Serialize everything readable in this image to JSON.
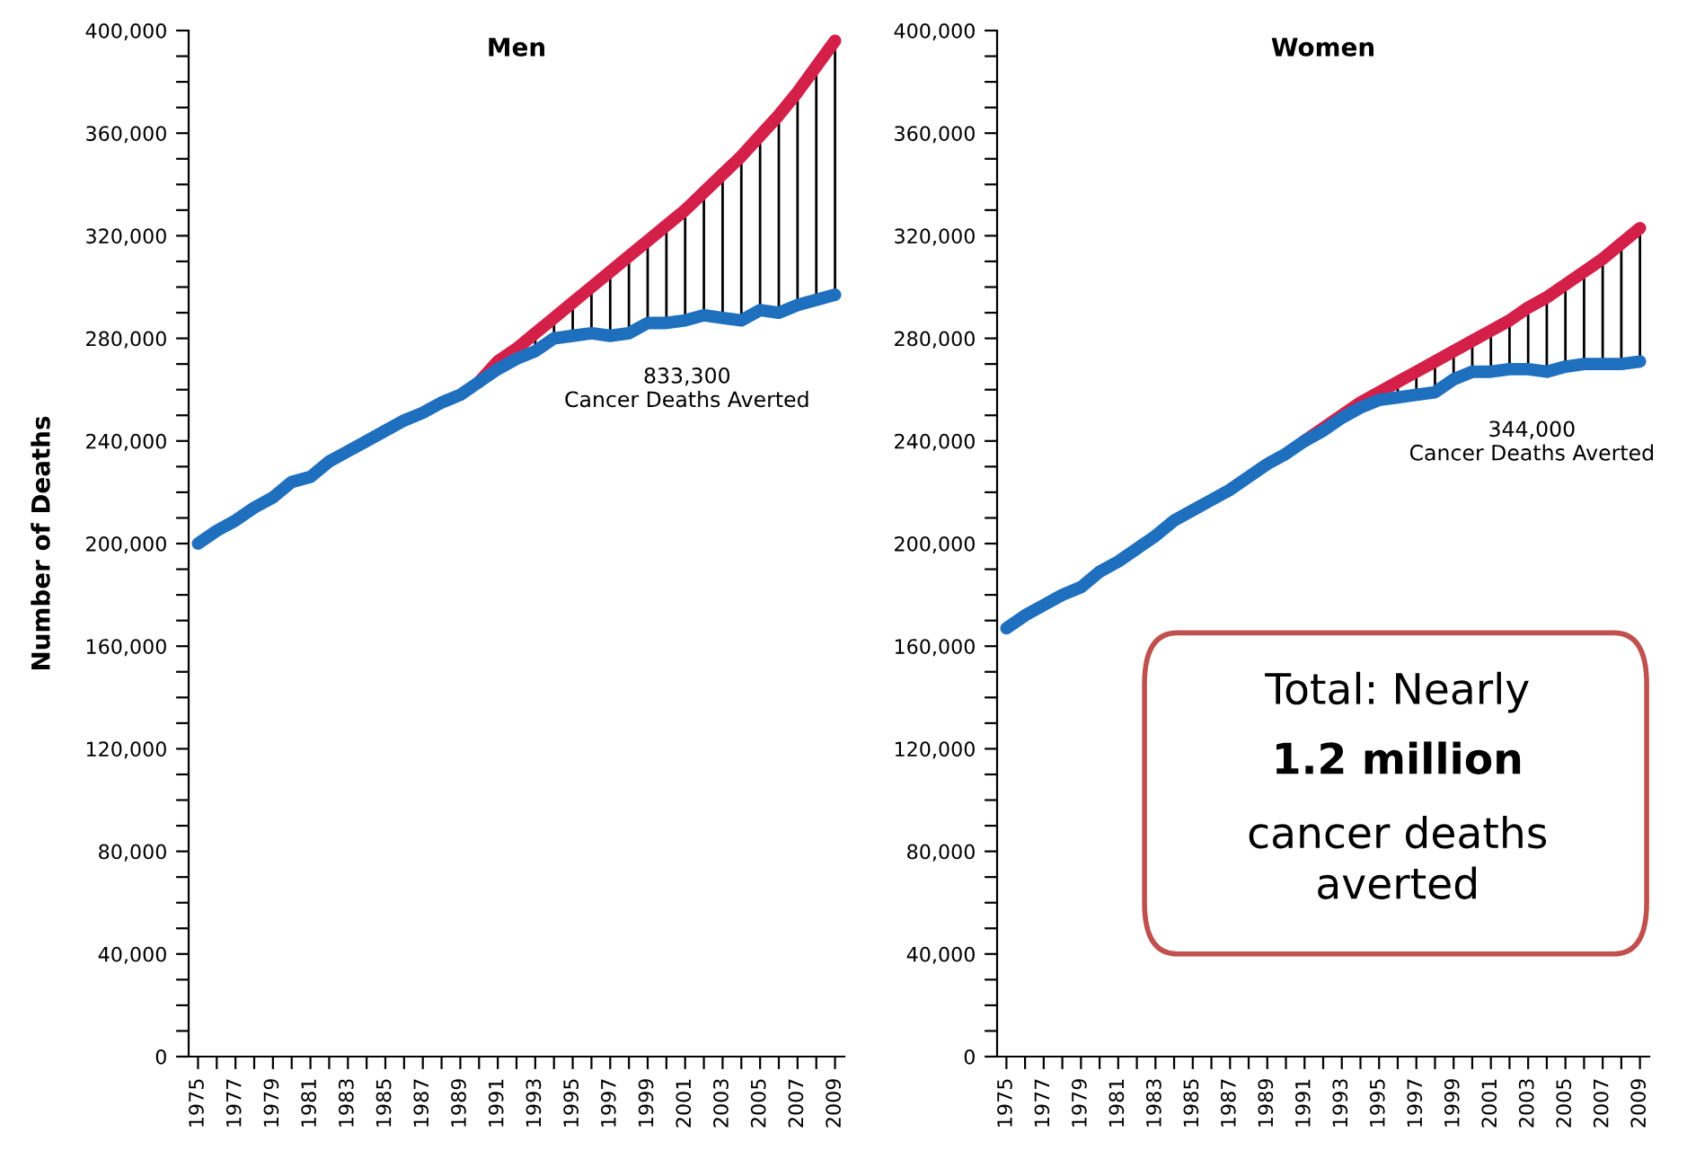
{
  "chart_data": [
    {
      "type": "line",
      "title": "Men",
      "ylabel": "Number of Deaths",
      "x": [
        1975,
        1976,
        1977,
        1978,
        1979,
        1980,
        1981,
        1982,
        1983,
        1984,
        1985,
        1986,
        1987,
        1988,
        1989,
        1990,
        1991,
        1992,
        1993,
        1994,
        1995,
        1996,
        1997,
        1998,
        1999,
        2000,
        2001,
        2002,
        2003,
        2004,
        2005,
        2006,
        2007,
        2008,
        2009
      ],
      "series": [
        {
          "color": "#d41f48",
          "values": [
            null,
            null,
            null,
            null,
            null,
            null,
            null,
            null,
            null,
            null,
            null,
            null,
            null,
            null,
            null,
            263000,
            271000,
            276000,
            282000,
            288000,
            294000,
            300000,
            306000,
            312000,
            318000,
            324000,
            330000,
            337000,
            344000,
            351000,
            359000,
            367000,
            376000,
            386000,
            396000
          ]
        },
        {
          "color": "#1f6fbf",
          "values": [
            200000,
            205000,
            209000,
            214000,
            218000,
            224000,
            226000,
            232000,
            236000,
            240000,
            244000,
            248000,
            251000,
            255000,
            258000,
            263000,
            268000,
            272000,
            275000,
            280000,
            281000,
            282000,
            281000,
            282000,
            286000,
            286000,
            287000,
            289000,
            288000,
            287000,
            291000,
            290000,
            293000,
            295000,
            297000
          ]
        }
      ],
      "annotations": [
        "833,300\nCancer Deaths Averted"
      ],
      "xlim": [
        1974.5,
        2009.5
      ],
      "ylim": [
        0,
        400000
      ],
      "xticks": [
        {
          "value": 1975,
          "label": "1975"
        },
        {
          "value": 1976,
          "label": null
        },
        {
          "value": 1977,
          "label": "1977"
        },
        {
          "value": 1978,
          "label": null
        },
        {
          "value": 1979,
          "label": "1979"
        },
        {
          "value": 1980,
          "label": null
        },
        {
          "value": 1981,
          "label": "1981"
        },
        {
          "value": 1982,
          "label": null
        },
        {
          "value": 1983,
          "label": "1983"
        },
        {
          "value": 1984,
          "label": null
        },
        {
          "value": 1985,
          "label": "1985"
        },
        {
          "value": 1986,
          "label": null
        },
        {
          "value": 1987,
          "label": "1987"
        },
        {
          "value": 1988,
          "label": null
        },
        {
          "value": 1989,
          "label": "1989"
        },
        {
          "value": 1990,
          "label": null
        },
        {
          "value": 1991,
          "label": "1991"
        },
        {
          "value": 1992,
          "label": null
        },
        {
          "value": 1993,
          "label": "1993"
        },
        {
          "value": 1994,
          "label": null
        },
        {
          "value": 1995,
          "label": "1995"
        },
        {
          "value": 1996,
          "label": null
        },
        {
          "value": 1997,
          "label": "1997"
        },
        {
          "value": 1998,
          "label": null
        },
        {
          "value": 1999,
          "label": "1999"
        },
        {
          "value": 2000,
          "label": null
        },
        {
          "value": 2001,
          "label": "2001"
        },
        {
          "value": 2002,
          "label": null
        },
        {
          "value": 2003,
          "label": "2003"
        },
        {
          "value": 2004,
          "label": null
        },
        {
          "value": 2005,
          "label": "2005"
        },
        {
          "value": 2006,
          "label": null
        },
        {
          "value": 2007,
          "label": "2007"
        },
        {
          "value": 2008,
          "label": null
        },
        {
          "value": 2009,
          "label": "2009"
        }
      ],
      "yticks": [
        0,
        {
          "value": 10000,
          "label": null
        },
        {
          "value": 20000,
          "label": null
        },
        {
          "value": 30000,
          "label": null
        },
        {
          "value": 40000,
          "label": "40,000"
        },
        {
          "value": 50000,
          "label": null
        },
        {
          "value": 60000,
          "label": null
        },
        {
          "value": 70000,
          "label": null
        },
        {
          "value": 80000,
          "label": "80,000"
        },
        {
          "value": 90000,
          "label": null
        },
        {
          "value": 100000,
          "label": null
        },
        {
          "value": 110000,
          "label": null
        },
        {
          "value": 120000,
          "label": "120,000"
        },
        {
          "value": 130000,
          "label": null
        },
        {
          "value": 140000,
          "label": null
        },
        {
          "value": 150000,
          "label": null
        },
        {
          "value": 160000,
          "label": "160,000"
        },
        {
          "value": 170000,
          "label": null
        },
        {
          "value": 180000,
          "label": null
        },
        {
          "value": 190000,
          "label": null
        },
        {
          "value": 200000,
          "label": "200,000"
        },
        {
          "value": 210000,
          "label": null
        },
        {
          "value": 220000,
          "label": null
        },
        {
          "value": 230000,
          "label": null
        },
        {
          "value": 240000,
          "label": "240,000"
        },
        {
          "value": 250000,
          "label": null
        },
        {
          "value": 260000,
          "label": null
        },
        {
          "value": 270000,
          "label": null
        },
        {
          "value": 280000,
          "label": "280,000"
        },
        {
          "value": 290000,
          "label": null
        },
        {
          "value": 300000,
          "label": null
        },
        {
          "value": 310000,
          "label": null
        },
        {
          "value": 320000,
          "label": "320,000"
        },
        {
          "value": 330000,
          "label": null
        },
        {
          "value": 340000,
          "label": null
        },
        {
          "value": 350000,
          "label": null
        },
        {
          "value": 360000,
          "label": "360,000"
        },
        {
          "value": 370000,
          "label": null
        },
        {
          "value": 380000,
          "label": null
        },
        {
          "value": 390000,
          "label": null
        },
        {
          "value": 400000,
          "label": "400,000"
        }
      ]
    },
    {
      "type": "line",
      "title": "Women",
      "x": [
        1975,
        1976,
        1977,
        1978,
        1979,
        1980,
        1981,
        1982,
        1983,
        1984,
        1985,
        1986,
        1987,
        1988,
        1989,
        1990,
        1991,
        1992,
        1993,
        1994,
        1995,
        1996,
        1997,
        1998,
        1999,
        2000,
        2001,
        2002,
        2003,
        2004,
        2005,
        2006,
        2007,
        2008,
        2009
      ],
      "series": [
        {
          "color": "#d41f48",
          "values": [
            null,
            null,
            null,
            null,
            null,
            null,
            null,
            null,
            null,
            null,
            null,
            null,
            null,
            null,
            null,
            null,
            240000,
            245000,
            250000,
            255000,
            259000,
            263000,
            267000,
            271000,
            275000,
            279000,
            283000,
            287000,
            292000,
            296000,
            301000,
            306000,
            311000,
            317000,
            323000
          ]
        },
        {
          "color": "#1f6fbf",
          "values": [
            167000,
            172000,
            176000,
            180000,
            183000,
            189000,
            193000,
            198000,
            203000,
            209000,
            213000,
            217000,
            221000,
            226000,
            231000,
            235000,
            240000,
            244000,
            249000,
            253000,
            256000,
            257000,
            258000,
            259000,
            264000,
            267000,
            267000,
            268000,
            268000,
            267000,
            269000,
            270000,
            270000,
            270000,
            271000
          ]
        }
      ],
      "annotations": [
        "344,000\nCancer Deaths Averted",
        "Total: Nearly",
        "1.2 million",
        "cancer deaths\naverted"
      ],
      "xlim": [
        1974.5,
        2009.5
      ],
      "ylim": [
        0,
        400000
      ],
      "xticks": [
        {
          "value": 1975,
          "label": "1975"
        },
        {
          "value": 1976,
          "label": null
        },
        {
          "value": 1977,
          "label": "1977"
        },
        {
          "value": 1978,
          "label": null
        },
        {
          "value": 1979,
          "label": "1979"
        },
        {
          "value": 1980,
          "label": null
        },
        {
          "value": 1981,
          "label": "1981"
        },
        {
          "value": 1982,
          "label": null
        },
        {
          "value": 1983,
          "label": "1983"
        },
        {
          "value": 1984,
          "label": null
        },
        {
          "value": 1985,
          "label": "1985"
        },
        {
          "value": 1986,
          "label": null
        },
        {
          "value": 1987,
          "label": "1987"
        },
        {
          "value": 1988,
          "label": null
        },
        {
          "value": 1989,
          "label": "1989"
        },
        {
          "value": 1990,
          "label": null
        },
        {
          "value": 1991,
          "label": "1991"
        },
        {
          "value": 1992,
          "label": null
        },
        {
          "value": 1993,
          "label": "1993"
        },
        {
          "value": 1994,
          "label": null
        },
        {
          "value": 1995,
          "label": "1995"
        },
        {
          "value": 1996,
          "label": null
        },
        {
          "value": 1997,
          "label": "1997"
        },
        {
          "value": 1998,
          "label": null
        },
        {
          "value": 1999,
          "label": "1999"
        },
        {
          "value": 2000,
          "label": null
        },
        {
          "value": 2001,
          "label": "2001"
        },
        {
          "value": 2002,
          "label": null
        },
        {
          "value": 2003,
          "label": "2003"
        },
        {
          "value": 2004,
          "label": null
        },
        {
          "value": 2005,
          "label": "2005"
        },
        {
          "value": 2006,
          "label": null
        },
        {
          "value": 2007,
          "label": "2007"
        },
        {
          "value": 2008,
          "label": null
        },
        {
          "value": 2009,
          "label": "2009"
        }
      ],
      "yticks": [
        0,
        {
          "value": 10000,
          "label": null
        },
        {
          "value": 20000,
          "label": null
        },
        {
          "value": 30000,
          "label": null
        },
        {
          "value": 40000,
          "label": "40,000"
        },
        {
          "value": 50000,
          "label": null
        },
        {
          "value": 60000,
          "label": null
        },
        {
          "value": 70000,
          "label": null
        },
        {
          "value": 80000,
          "label": "80,000"
        },
        {
          "value": 90000,
          "label": null
        },
        {
          "value": 100000,
          "label": null
        },
        {
          "value": 110000,
          "label": null
        },
        {
          "value": 120000,
          "label": "120,000"
        },
        {
          "value": 130000,
          "label": null
        },
        {
          "value": 140000,
          "label": null
        },
        {
          "value": 150000,
          "label": null
        },
        {
          "value": 160000,
          "label": "160,000"
        },
        {
          "value": 170000,
          "label": null
        },
        {
          "value": 180000,
          "label": null
        },
        {
          "value": 190000,
          "label": null
        },
        {
          "value": 200000,
          "label": "200,000"
        },
        {
          "value": 210000,
          "label": null
        },
        {
          "value": 220000,
          "label": null
        },
        {
          "value": 230000,
          "label": null
        },
        {
          "value": 240000,
          "label": "240,000"
        },
        {
          "value": 250000,
          "label": null
        },
        {
          "value": 260000,
          "label": null
        },
        {
          "value": 270000,
          "label": null
        },
        {
          "value": 280000,
          "label": "280,000"
        },
        {
          "value": 290000,
          "label": null
        },
        {
          "value": 300000,
          "label": null
        },
        {
          "value": 310000,
          "label": null
        },
        {
          "value": 320000,
          "label": "320,000"
        },
        {
          "value": 330000,
          "label": null
        },
        {
          "value": 340000,
          "label": null
        },
        {
          "value": 350000,
          "label": null
        },
        {
          "value": 360000,
          "label": "360,000"
        },
        {
          "value": 370000,
          "label": null
        },
        {
          "value": 380000,
          "label": null
        },
        {
          "value": 390000,
          "label": null
        },
        {
          "value": 400000,
          "label": "400,000"
        }
      ]
    }
  ]
}
